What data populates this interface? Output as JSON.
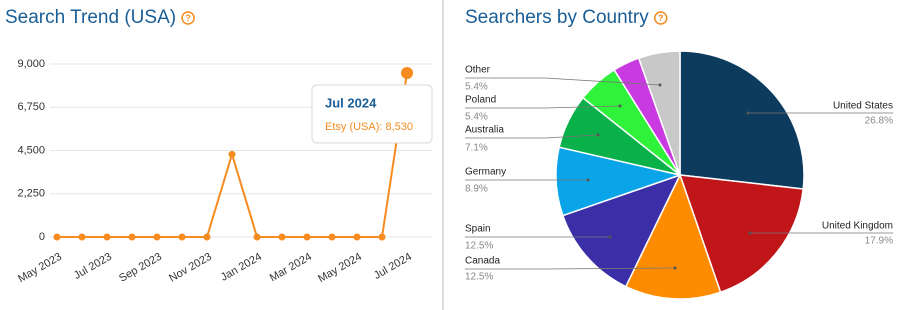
{
  "chart_data": [
    {
      "type": "line",
      "title": "Search Trend (USA)",
      "categories": [
        "May 2023",
        null,
        "Jul 2023",
        null,
        "Sep 2023",
        null,
        "Nov 2023",
        null,
        "Jan 2024",
        null,
        "Mar 2024",
        null,
        "May 2024",
        null,
        "Jul 2024"
      ],
      "series": [
        {
          "name": "Etsy (USA)",
          "color": "#f68b1f",
          "values": [
            0,
            0,
            0,
            0,
            0,
            0,
            0,
            4300,
            0,
            0,
            0,
            0,
            0,
            0,
            8530
          ]
        }
      ],
      "ylim": [
        0,
        9000
      ],
      "yticks": [
        0,
        {
          "value": 2250,
          "label": "2,250"
        },
        {
          "value": 4500,
          "label": "4,500"
        },
        {
          "value": 6750,
          "label": "6,750"
        },
        {
          "value": 9000,
          "label": "9,000"
        }
      ],
      "grid": true,
      "tooltip": {
        "title": "Jul 2024",
        "text": "Etsy (USA): 8,530"
      }
    },
    {
      "type": "pie",
      "title": "Searchers by Country",
      "categories": [
        "United States",
        "United Kingdom",
        "Canada",
        "Spain",
        "Germany",
        "Australia",
        "Poland",
        null,
        "Other"
      ],
      "values": [
        26.8,
        17.9,
        12.5,
        12.5,
        8.9,
        7.1,
        5.4,
        3.5,
        5.4
      ],
      "value_labels": [
        "26.8%",
        "17.9%",
        "12.5%",
        "12.5%",
        "8.9%",
        "7.1%",
        "5.4%",
        null,
        "5.4%"
      ],
      "colors": [
        "#0d3b5e",
        "#c0161a",
        "#ff8c00",
        "#3b2fa8",
        "#0aa5e8",
        "#0ab04a",
        "#2ff23a",
        "#c93ae0",
        "#c8c8c8"
      ]
    }
  ]
}
